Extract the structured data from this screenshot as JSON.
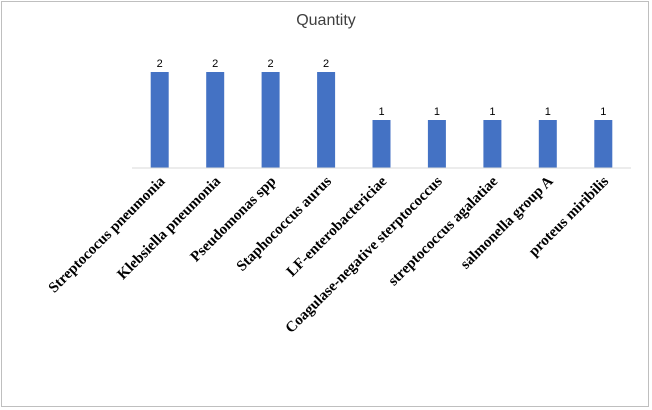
{
  "chart_data": {
    "type": "bar",
    "title": "Quantity",
    "xlabel": "",
    "ylabel": "",
    "categories": [
      "Streptococus pneumonia",
      "Klebsiella pneumonia",
      "Pseudomonas spp",
      "Staphococcus aurus",
      "LF-enterobactericiae",
      "Coagulase-negative sterptococcus",
      "streptococcus agalatiae",
      "salmonella group A",
      "proteus miribilis"
    ],
    "values": [
      2,
      2,
      2,
      2,
      1,
      1,
      1,
      1,
      1
    ],
    "ylim": [
      0,
      2
    ],
    "grid": false,
    "legend": "none",
    "bar_color": "#4472C4",
    "axis_color": "#d9d9d9"
  }
}
